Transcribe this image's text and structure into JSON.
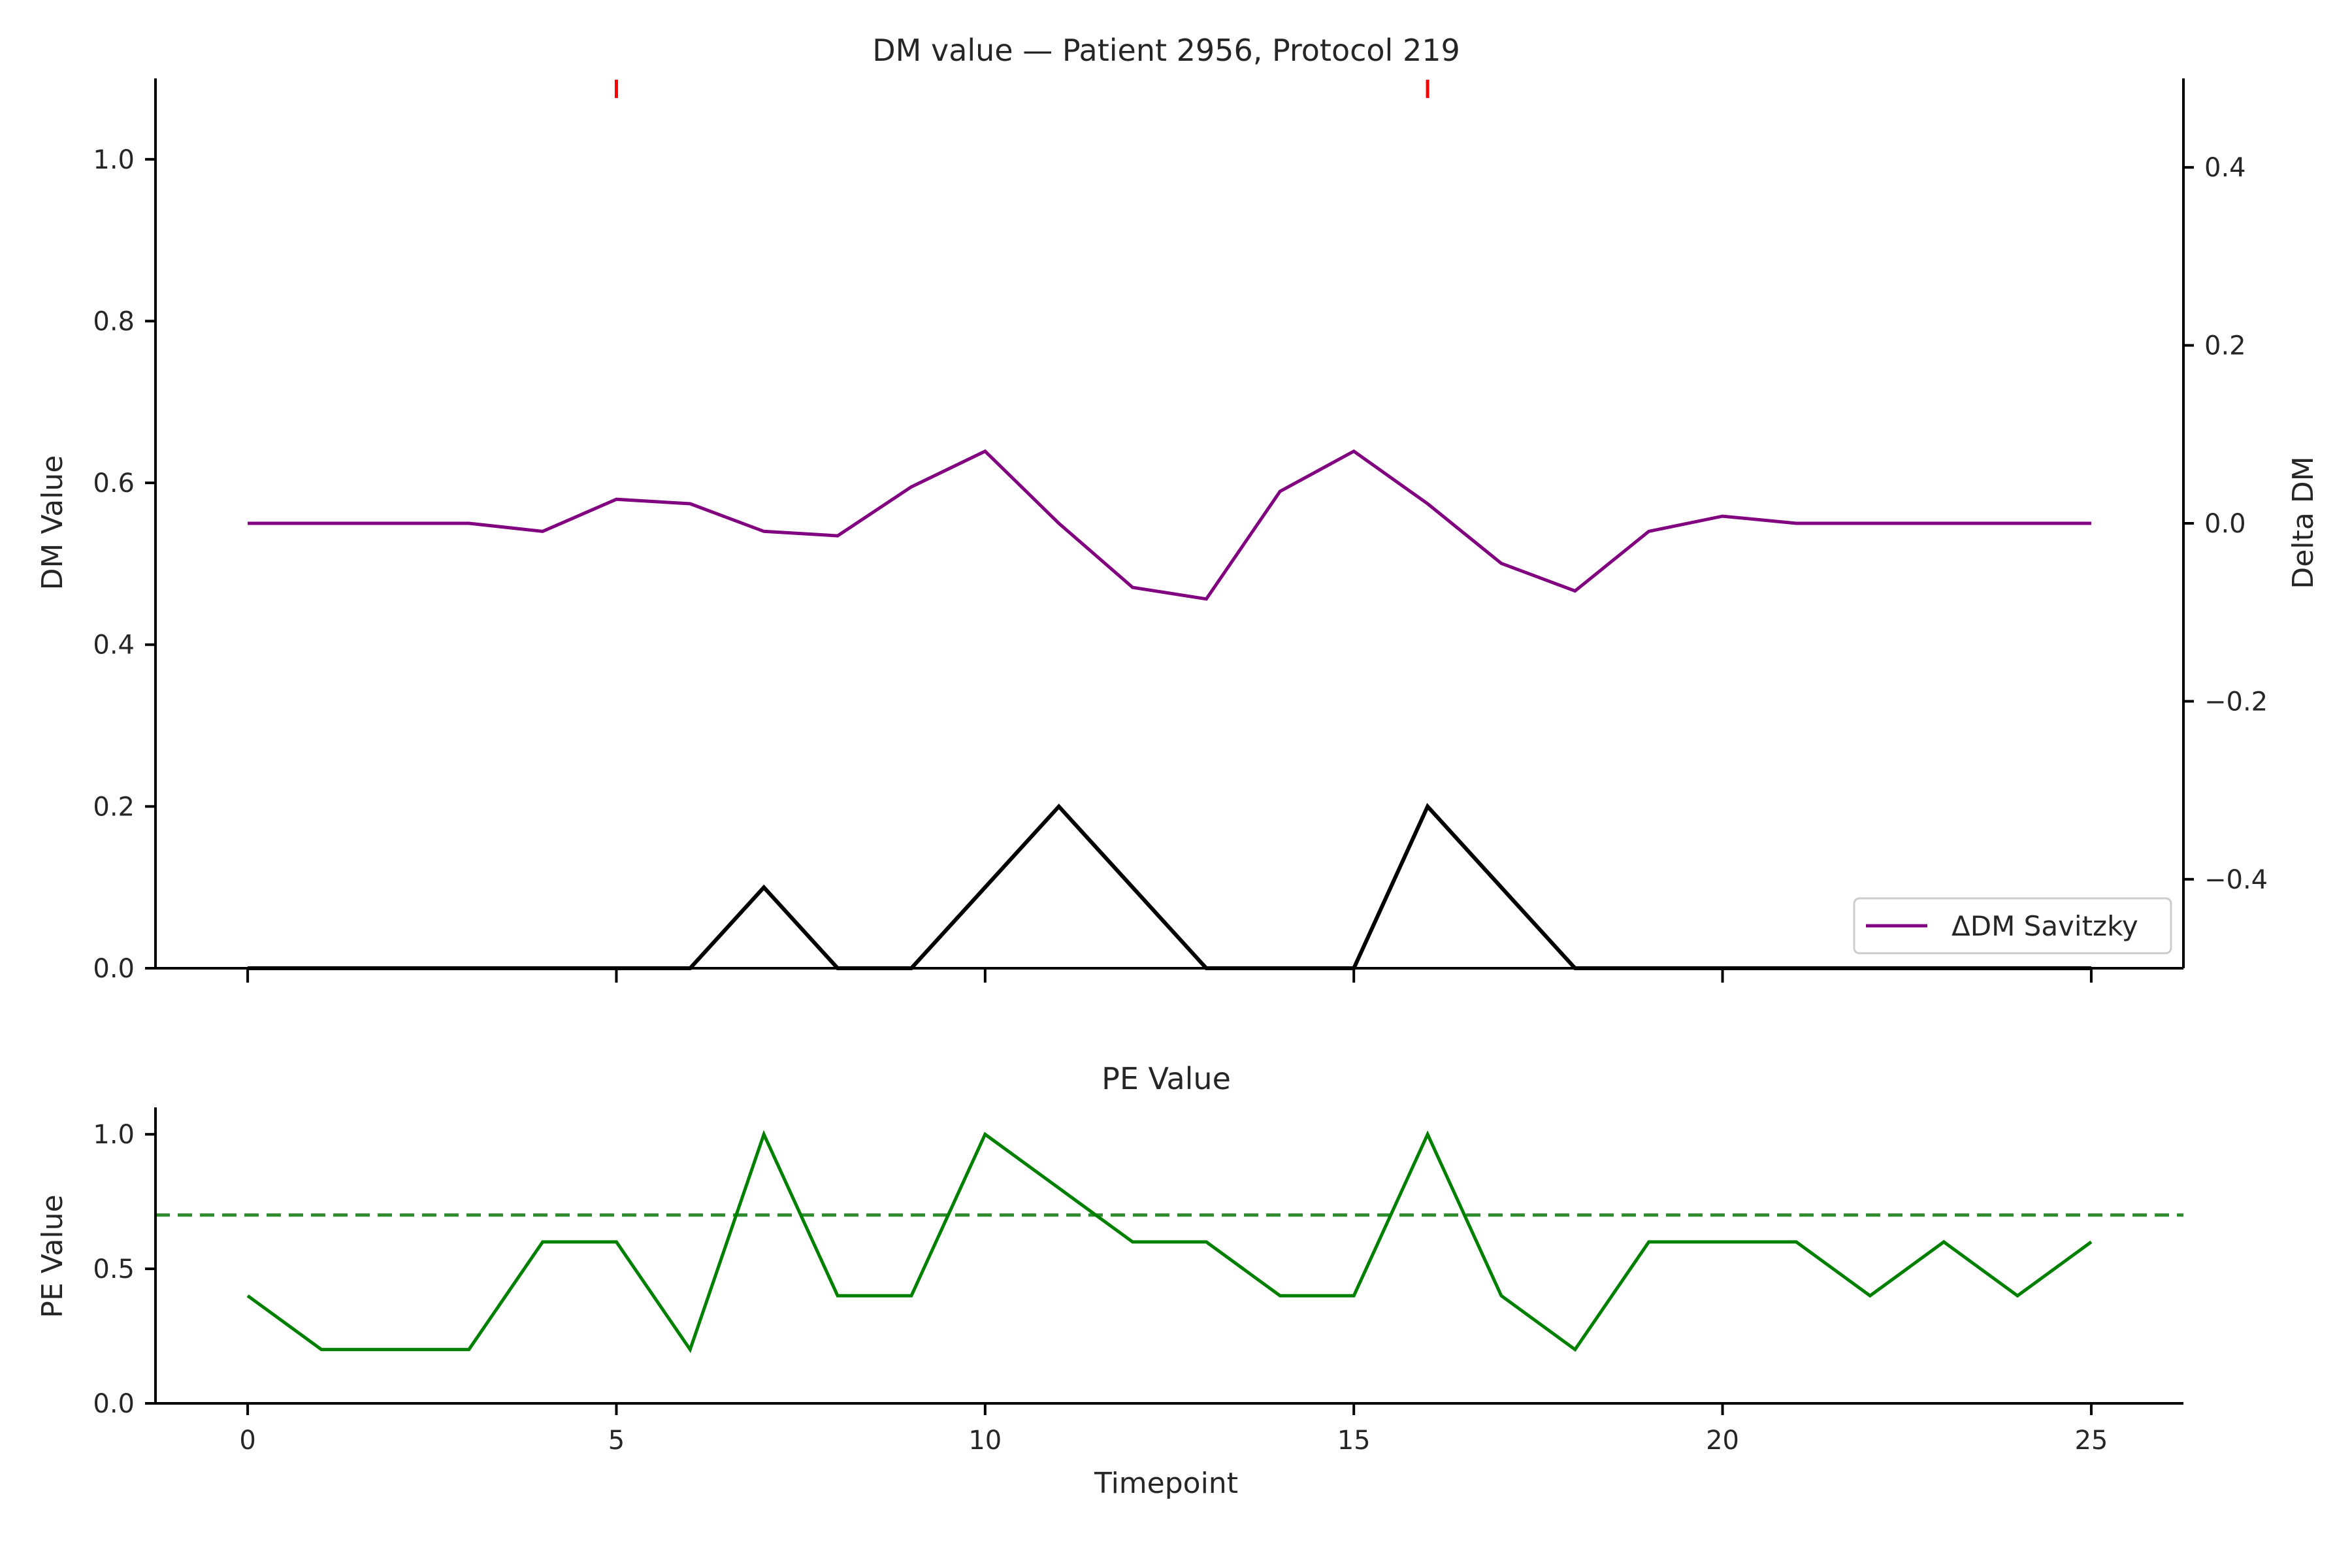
{
  "chart_data": [
    {
      "type": "line",
      "title": "DM value — Patient 2956, Protocol 219",
      "xlabel": "",
      "ylabel": "DM Value",
      "y2label": "Delta DM",
      "x": [
        0,
        1,
        2,
        3,
        4,
        5,
        6,
        7,
        8,
        9,
        10,
        11,
        12,
        13,
        14,
        15,
        16,
        17,
        18,
        19,
        20,
        21,
        22,
        23,
        24,
        25
      ],
      "xticks": [
        0,
        5,
        10,
        15,
        20,
        25
      ],
      "xlim": [
        -1.25,
        26.25
      ],
      "ylim": [
        0,
        1.1
      ],
      "yticks": [
        0.0,
        0.2,
        0.4,
        0.6,
        0.8,
        1.0
      ],
      "y2lim": [
        -0.5,
        0.5
      ],
      "y2ticks": [
        -0.4,
        -0.2,
        0.0,
        0.2,
        0.4
      ],
      "series": [
        {
          "name": "",
          "axis": "left",
          "color": "#000000",
          "values": [
            0,
            0,
            0,
            0,
            0,
            0,
            0,
            0.1,
            0,
            0,
            0.1,
            0.2,
            0.1,
            0,
            0,
            0,
            0.2,
            0.1,
            0,
            0,
            0,
            0,
            0,
            0,
            0,
            0
          ]
        },
        {
          "name": "ΔDM Savitzky",
          "axis": "right",
          "color": "#800080",
          "values": [
            0,
            0,
            0,
            0,
            -0.009,
            0.027,
            0.022,
            -0.009,
            -0.014,
            0.041,
            0.081,
            0,
            -0.072,
            -0.085,
            0.036,
            0.081,
            0.022,
            -0.045,
            -0.076,
            -0.009,
            0.008,
            0,
            0,
            0,
            0,
            0
          ]
        }
      ],
      "event_markers": {
        "x": [
          5,
          16
        ],
        "color": "#ff0000"
      },
      "legend": {
        "position": "bottom-right",
        "entries": [
          "ΔDM Savitzky"
        ]
      },
      "tick_format": {
        "y": "0.0",
        "y2": "0.0"
      }
    },
    {
      "type": "line",
      "title": "PE Value",
      "xlabel": "Timepoint",
      "ylabel": "PE Value",
      "x": [
        0,
        1,
        2,
        3,
        4,
        5,
        6,
        7,
        8,
        9,
        10,
        11,
        12,
        13,
        14,
        15,
        16,
        17,
        18,
        19,
        20,
        21,
        22,
        23,
        24,
        25
      ],
      "xticks": [
        0,
        5,
        10,
        15,
        20,
        25
      ],
      "xlim": [
        -1.25,
        26.25
      ],
      "ylim": [
        0,
        1.1
      ],
      "yticks": [
        0.0,
        0.5,
        1.0
      ],
      "series": [
        {
          "name": "",
          "color": "#008000",
          "values": [
            0.4,
            0.2,
            0.2,
            0.2,
            0.6,
            0.6,
            0.2,
            1.0,
            0.4,
            0.4,
            1.0,
            0.8,
            0.6,
            0.6,
            0.4,
            0.4,
            1.0,
            0.4,
            0.2,
            0.6,
            0.6,
            0.6,
            0.4,
            0.6,
            0.4,
            0.6
          ]
        }
      ],
      "threshold": {
        "y": 0.7,
        "color": "#2e8b2e",
        "style": "dashed"
      },
      "tick_format": {
        "y": "0.0"
      }
    }
  ]
}
